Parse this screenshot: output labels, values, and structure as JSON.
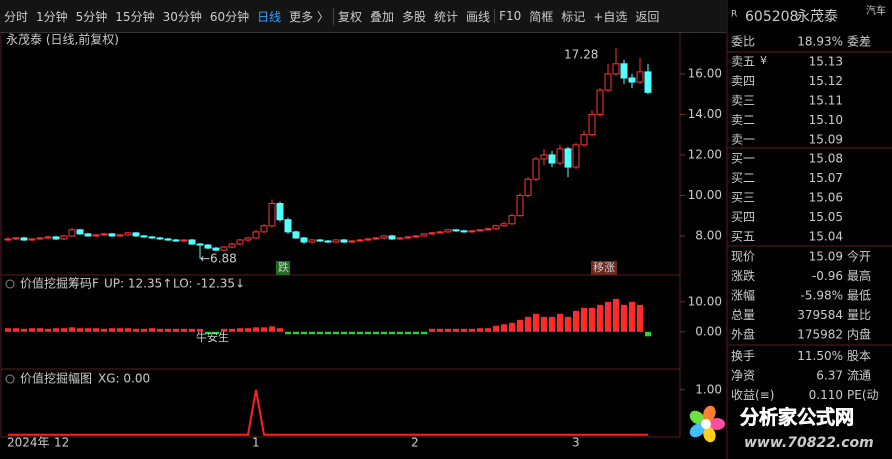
{
  "toolbar": {
    "items": [
      "分时",
      "1分钟",
      "5分钟",
      "15分钟",
      "30分钟",
      "60分钟",
      "日线",
      "更多 〉",
      "复权",
      "叠加",
      "多股",
      "统计",
      "画线",
      "F10",
      "简框",
      "标记",
      "+自选",
      "返回"
    ],
    "active": 6,
    "active_color": "#3ca0ff"
  },
  "quote": {
    "flag": "R",
    "code": "605208",
    "name": "永茂泰",
    "sector": "汽车",
    "weibi": {
      "label": "委比",
      "value": "18.93%",
      "label2": "委差",
      "color": "#ff3b3b"
    },
    "sell_currency": "¥",
    "sell": [
      {
        "label": "卖五",
        "value": "15.13"
      },
      {
        "label": "卖四",
        "value": "15.12"
      },
      {
        "label": "卖三",
        "value": "15.11"
      },
      {
        "label": "卖二",
        "value": "15.10"
      },
      {
        "label": "卖一",
        "value": "15.09"
      }
    ],
    "buy": [
      {
        "label": "买一",
        "value": "15.08"
      },
      {
        "label": "买二",
        "value": "15.07"
      },
      {
        "label": "买三",
        "value": "15.06"
      },
      {
        "label": "买四",
        "value": "15.05"
      },
      {
        "label": "买五",
        "value": "15.04"
      }
    ],
    "book_color": "#3ed23e",
    "stats": [
      {
        "label": "现价",
        "value": "15.09",
        "label2": "今开",
        "color": "#3ed23e"
      },
      {
        "label": "涨跌",
        "value": "-0.96",
        "label2": "最高",
        "color": "#3ed23e"
      },
      {
        "label": "涨幅",
        "value": "-5.98%",
        "label2": "最低",
        "color": "#3ed23e"
      },
      {
        "label": "总量",
        "value": "379584",
        "label2": "量比",
        "color": "#e8c020"
      },
      {
        "label": "外盘",
        "value": "175982",
        "label2": "内盘",
        "color": "#ff3b3b"
      },
      {
        "label": "换手",
        "value": "11.50%",
        "label2": "股本",
        "color": "#dddddd"
      },
      {
        "label": "净资",
        "value": "6.37",
        "label2": "流通",
        "color": "#dddddd"
      },
      {
        "label": "收益(≡)",
        "value": "0.110",
        "label2": "PE(动",
        "color": "#dddddd"
      }
    ]
  },
  "main_chart": {
    "type": "candlestick",
    "title": "永茂泰 (日线,前复权)",
    "up_color": "#ff3232",
    "down_color": "#54ffff",
    "ylim": [
      6.07,
      18.07
    ],
    "yticks": [
      {
        "value": 8,
        "label": "8.00"
      },
      {
        "value": 10,
        "label": "10.00"
      },
      {
        "value": 12,
        "label": "12.00"
      },
      {
        "value": 14,
        "label": "14.00"
      },
      {
        "value": 16,
        "label": "16.00"
      }
    ],
    "candles": [
      [
        7.8,
        7.95,
        7.75,
        7.85
      ],
      [
        7.85,
        7.95,
        7.8,
        7.9
      ],
      [
        7.9,
        7.95,
        7.75,
        7.8
      ],
      [
        7.8,
        7.9,
        7.75,
        7.85
      ],
      [
        7.85,
        7.95,
        7.8,
        7.9
      ],
      [
        7.9,
        8.0,
        7.85,
        7.95
      ],
      [
        7.95,
        8.0,
        7.8,
        7.85
      ],
      [
        7.85,
        8.05,
        7.8,
        8.0
      ],
      [
        8.0,
        8.4,
        7.95,
        8.3
      ],
      [
        8.3,
        8.35,
        8.05,
        8.1
      ],
      [
        8.1,
        8.15,
        7.95,
        8.0
      ],
      [
        8.0,
        8.1,
        7.95,
        8.05
      ],
      [
        8.05,
        8.15,
        8.0,
        8.1
      ],
      [
        8.1,
        8.15,
        7.95,
        8.0
      ],
      [
        8.0,
        8.1,
        7.95,
        8.05
      ],
      [
        8.05,
        8.2,
        8.0,
        8.15
      ],
      [
        8.15,
        8.2,
        7.95,
        8.0
      ],
      [
        8.0,
        8.05,
        7.9,
        7.95
      ],
      [
        7.95,
        8.0,
        7.85,
        7.9
      ],
      [
        7.9,
        7.95,
        7.8,
        7.85
      ],
      [
        7.85,
        7.9,
        7.75,
        7.8
      ],
      [
        7.8,
        7.85,
        7.7,
        7.75
      ],
      [
        7.75,
        7.85,
        7.7,
        7.8
      ],
      [
        7.8,
        7.85,
        7.55,
        7.6
      ],
      [
        7.6,
        7.65,
        6.88,
        7.55
      ],
      [
        7.55,
        7.6,
        7.35,
        7.4
      ],
      [
        7.4,
        7.45,
        7.25,
        7.3
      ],
      [
        7.3,
        7.5,
        7.25,
        7.45
      ],
      [
        7.45,
        7.65,
        7.4,
        7.6
      ],
      [
        7.6,
        7.85,
        7.55,
        7.8
      ],
      [
        7.8,
        7.95,
        7.7,
        7.9
      ],
      [
        7.9,
        8.3,
        7.85,
        8.2
      ],
      [
        8.2,
        8.6,
        8.15,
        8.5
      ],
      [
        8.5,
        9.8,
        8.4,
        9.6
      ],
      [
        9.6,
        9.7,
        8.7,
        8.8
      ],
      [
        8.8,
        8.9,
        8.1,
        8.2
      ],
      [
        8.2,
        8.25,
        7.85,
        7.9
      ],
      [
        7.9,
        7.95,
        7.6,
        7.7
      ],
      [
        7.7,
        7.85,
        7.65,
        7.8
      ],
      [
        7.8,
        7.85,
        7.7,
        7.75
      ],
      [
        7.75,
        7.8,
        7.65,
        7.7
      ],
      [
        7.7,
        7.85,
        7.65,
        7.8
      ],
      [
        7.8,
        7.85,
        7.65,
        7.7
      ],
      [
        7.7,
        7.8,
        7.65,
        7.75
      ],
      [
        7.75,
        7.85,
        7.7,
        7.8
      ],
      [
        7.8,
        7.9,
        7.75,
        7.85
      ],
      [
        7.85,
        7.95,
        7.8,
        7.9
      ],
      [
        7.9,
        8.05,
        7.85,
        8.0
      ],
      [
        8.0,
        8.05,
        7.8,
        7.85
      ],
      [
        7.85,
        7.95,
        7.8,
        7.9
      ],
      [
        7.9,
        8.0,
        7.85,
        7.95
      ],
      [
        7.95,
        8.05,
        7.9,
        8.0
      ],
      [
        8.0,
        8.15,
        7.95,
        8.1
      ],
      [
        8.1,
        8.2,
        8.05,
        8.15
      ],
      [
        8.15,
        8.25,
        8.1,
        8.2
      ],
      [
        8.2,
        8.35,
        8.15,
        8.3
      ],
      [
        8.3,
        8.35,
        8.2,
        8.25
      ],
      [
        8.25,
        8.3,
        8.15,
        8.2
      ],
      [
        8.2,
        8.3,
        8.15,
        8.25
      ],
      [
        8.25,
        8.35,
        8.2,
        8.3
      ],
      [
        8.3,
        8.4,
        8.25,
        8.35
      ],
      [
        8.35,
        8.55,
        8.3,
        8.5
      ],
      [
        8.5,
        8.7,
        8.45,
        8.6
      ],
      [
        8.6,
        9.1,
        8.55,
        9.0
      ],
      [
        9.0,
        10.1,
        8.95,
        10.0
      ],
      [
        10.0,
        10.9,
        9.9,
        10.8
      ],
      [
        10.8,
        11.9,
        10.7,
        11.8
      ],
      [
        11.8,
        12.3,
        11.5,
        12.0
      ],
      [
        12.0,
        12.2,
        11.4,
        11.6
      ],
      [
        11.6,
        12.5,
        11.5,
        12.3
      ],
      [
        12.3,
        12.4,
        10.9,
        11.4
      ],
      [
        11.4,
        12.6,
        11.3,
        12.5
      ],
      [
        12.5,
        13.2,
        12.4,
        13.0
      ],
      [
        13.0,
        14.2,
        12.9,
        14.0
      ],
      [
        14.0,
        15.3,
        13.9,
        15.2
      ],
      [
        15.2,
        16.5,
        15.1,
        16.0
      ],
      [
        16.0,
        17.28,
        15.9,
        16.5
      ],
      [
        16.5,
        16.7,
        15.5,
        15.8
      ],
      [
        15.8,
        16.0,
        15.3,
        15.6
      ],
      [
        15.6,
        16.8,
        15.5,
        16.1
      ],
      [
        16.1,
        16.5,
        15.0,
        15.09
      ]
    ],
    "high_label": "17.28",
    "low_label": "←6.88",
    "badges": [
      "跌",
      "移涨"
    ]
  },
  "indicator1": {
    "type": "bar",
    "name": "价值挖掘筹码F",
    "up_label": "UP: 12.35↑",
    "lo_label": "LO: -12.35↓",
    "note": "牛安生",
    "pos_color": "#ff2a2a",
    "neg_color": "#2ad62a",
    "ylim": [
      -12.41,
      18.62
    ],
    "yticks": [
      {
        "value": 10,
        "label": "10.00"
      },
      {
        "value": 0,
        "label": "0.00"
      }
    ],
    "values": [
      1.2,
      1.2,
      1.0,
      1.2,
      1.2,
      1.0,
      1.2,
      1.2,
      1.5,
      1.2,
      1.2,
      1.2,
      1.0,
      1.2,
      1.2,
      1.2,
      1.0,
      1.0,
      1.2,
      1.0,
      1.0,
      1.0,
      1.0,
      1.0,
      1.0,
      -0.8,
      -0.8,
      1.0,
      1.0,
      1.2,
      1.2,
      1.5,
      1.5,
      1.8,
      1.2,
      -0.8,
      -0.8,
      -0.8,
      -0.8,
      -0.8,
      -0.8,
      -0.8,
      -0.8,
      -0.8,
      -0.8,
      -0.8,
      -0.8,
      -0.8,
      -0.8,
      -0.8,
      -0.8,
      -0.8,
      -0.8,
      1.0,
      1.0,
      1.0,
      1.0,
      1.0,
      1.0,
      1.2,
      1.2,
      2,
      2.5,
      3,
      4,
      5,
      6,
      5,
      5,
      6,
      5,
      7,
      8,
      8,
      9,
      10,
      11,
      9,
      10,
      9,
      -1.5
    ]
  },
  "indicator2": {
    "type": "line",
    "name": "价值挖掘幅图",
    "xg_label": "XG: 0.00",
    "color": "#ff2020",
    "ylim": [
      -0.05,
      1.44
    ],
    "yticks": [
      {
        "value": 1,
        "label": "1.00"
      }
    ],
    "values": [
      0,
      0,
      0,
      0,
      0,
      0,
      0,
      0,
      0,
      0,
      0,
      0,
      0,
      0,
      0,
      0,
      0,
      0,
      0,
      0,
      0,
      0,
      0,
      0,
      0,
      0,
      0,
      0,
      0,
      0,
      0,
      1,
      0,
      0,
      0,
      0,
      0,
      0,
      0,
      0,
      0,
      0,
      0,
      0,
      0,
      0,
      0,
      0,
      0,
      0,
      0,
      0,
      0,
      0,
      0,
      0,
      0,
      0,
      0,
      0,
      0,
      0,
      0,
      0,
      0,
      0,
      0,
      0,
      0,
      0,
      0,
      0,
      0,
      0,
      0,
      0,
      0,
      0,
      0,
      0,
      0
    ]
  },
  "x_axis": {
    "labels": [
      "2024年",
      "12",
      "1",
      "2",
      "3"
    ]
  },
  "watermark": {
    "title": "分析家公式网",
    "url": "www.70822.com"
  }
}
